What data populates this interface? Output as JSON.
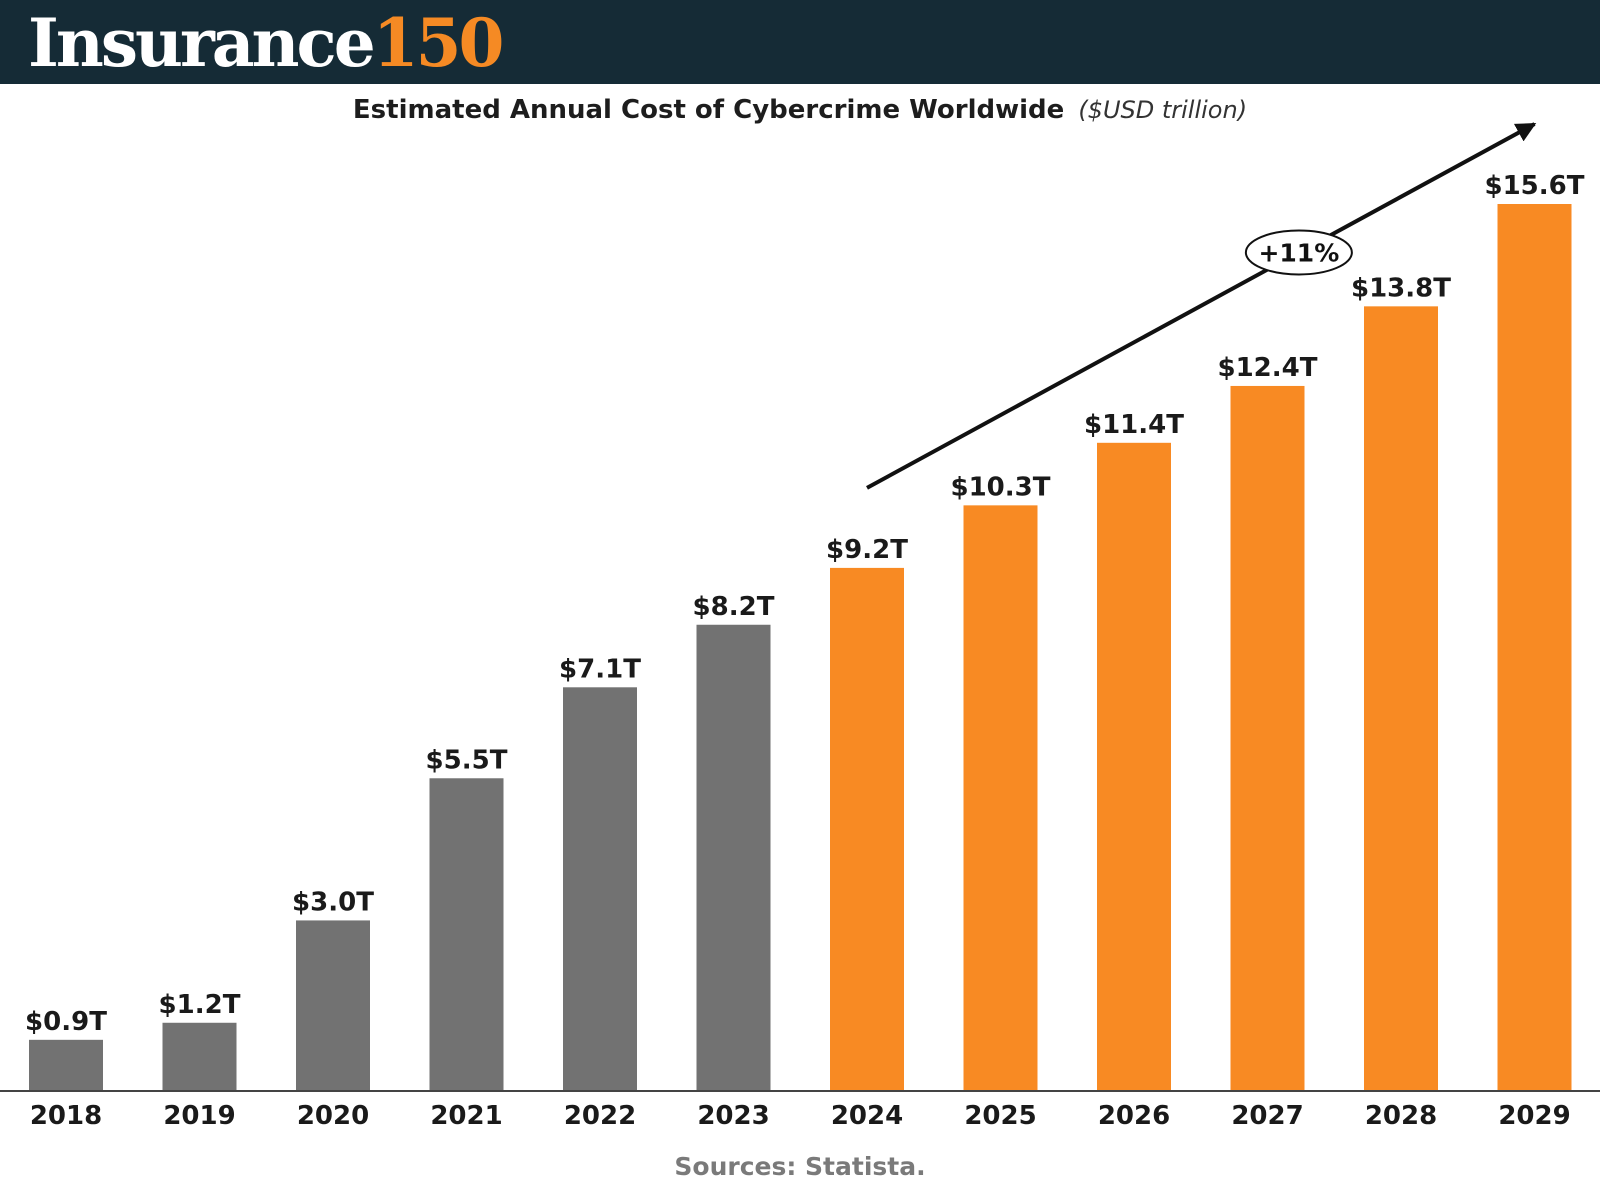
{
  "header": {
    "logo_word": "Insurance",
    "logo_number": "150",
    "background_color": "#152b36",
    "logo_accent_color": "#f58a24"
  },
  "chart_data": {
    "type": "bar",
    "title": "Estimated Annual Cost of Cybercrime Worldwide",
    "unit_label": "($USD trillion)",
    "categories": [
      "2018",
      "2019",
      "2020",
      "2021",
      "2022",
      "2023",
      "2024",
      "2025",
      "2026",
      "2027",
      "2028",
      "2029"
    ],
    "values": [
      0.9,
      1.2,
      3.0,
      5.5,
      7.1,
      8.2,
      9.2,
      10.3,
      11.4,
      12.4,
      13.8,
      15.6
    ],
    "value_labels": [
      "$0.9T",
      "$1.2T",
      "$3.0T",
      "$5.5T",
      "$7.1T",
      "$8.2T",
      "$9.2T",
      "$10.3T",
      "$11.4T",
      "$12.4T",
      "$13.8T",
      "$15.6T"
    ],
    "ylim": [
      0,
      15.6
    ],
    "grid": false,
    "legend": "none",
    "colors": {
      "historical": "#727272",
      "forecast": "#f88a23"
    },
    "historical_until": "2023",
    "annotation": {
      "text": "+11%",
      "from_category": "2024",
      "to_category": "2029"
    }
  },
  "footer": {
    "source": "Sources: Statista."
  }
}
